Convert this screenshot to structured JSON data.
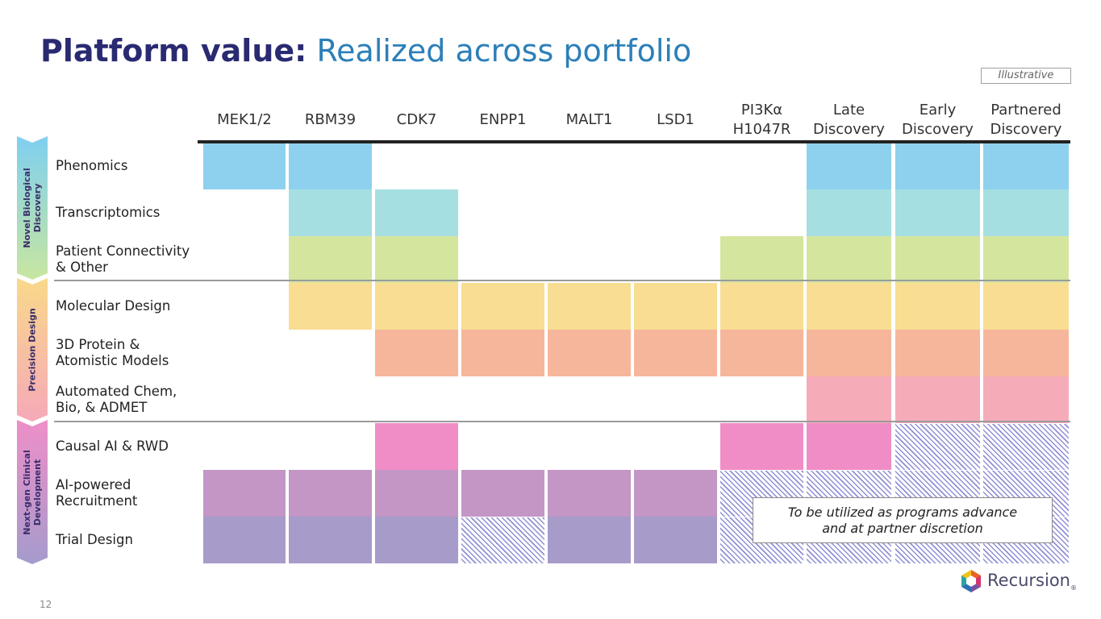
{
  "title": {
    "bold": "Platform value:",
    "light": "Realized across portfolio"
  },
  "badge": "Illustrative",
  "columns": [
    {
      "line1": "MEK1/2",
      "line2": ""
    },
    {
      "line1": "RBM39",
      "line2": ""
    },
    {
      "line1": "CDK7",
      "line2": ""
    },
    {
      "line1": "ENPP1",
      "line2": ""
    },
    {
      "line1": "MALT1",
      "line2": ""
    },
    {
      "line1": "LSD1",
      "line2": ""
    },
    {
      "line1": "PI3Kα",
      "line2": "H1047R"
    },
    {
      "line1": "Late",
      "line2": "Discovery"
    },
    {
      "line1": "Early",
      "line2": "Discovery"
    },
    {
      "line1": "Partnered",
      "line2": "Discovery"
    }
  ],
  "segments": [
    {
      "line1": "Novel Biological",
      "line2": "Discovery",
      "color_top": "#7fcff0",
      "color_bottom": "#c8e6a0"
    },
    {
      "line1": "Precision Design",
      "line2": "",
      "color_top": "#f8d98a",
      "color_bottom": "#f6a9b8"
    },
    {
      "line1": "Next-gen Clinical",
      "line2": "Development",
      "color_top": "#ee8fc8",
      "color_bottom": "#a59bcc"
    }
  ],
  "rows": [
    {
      "line1": "Phenomics",
      "line2": "",
      "color": "#8dd1ee"
    },
    {
      "line1": "Transcriptomics",
      "line2": "",
      "color": "#a6dfe2"
    },
    {
      "line1": "Patient Connectivity",
      "line2": "& Other",
      "color": "#d4e59e"
    },
    {
      "line1": "Molecular Design",
      "line2": "",
      "color": "#f8dd92"
    },
    {
      "line1": "3D Protein &",
      "line2": "Atomistic Models",
      "color": "#f6b69b"
    },
    {
      "line1": "Automated Chem,",
      "line2": "Bio, & ADMET",
      "color": "#f6abb9"
    },
    {
      "line1": "Causal AI & RWD",
      "line2": "",
      "color": "#f08dc6"
    },
    {
      "line1": "AI-powered",
      "line2": "Recruitment",
      "color": "#c396c6"
    },
    {
      "line1": "Trial Design",
      "line2": "",
      "color": "#a79bca"
    }
  ],
  "matrix": [
    [
      1,
      1,
      0,
      0,
      0,
      0,
      0,
      1,
      1,
      1
    ],
    [
      0,
      1,
      1,
      0,
      0,
      0,
      0,
      1,
      1,
      1
    ],
    [
      0,
      1,
      1,
      0,
      0,
      0,
      1,
      1,
      1,
      1
    ],
    [
      0,
      1,
      1,
      1,
      1,
      1,
      1,
      1,
      1,
      1
    ],
    [
      0,
      0,
      1,
      1,
      1,
      1,
      1,
      1,
      1,
      1
    ],
    [
      0,
      0,
      0,
      0,
      0,
      0,
      0,
      1,
      1,
      1
    ],
    [
      0,
      0,
      1,
      0,
      0,
      0,
      1,
      1,
      2,
      2
    ],
    [
      1,
      1,
      1,
      1,
      1,
      1,
      2,
      2,
      2,
      2
    ],
    [
      1,
      1,
      1,
      2,
      1,
      1,
      2,
      2,
      2,
      2
    ]
  ],
  "note": {
    "line1": "To be utilized as programs advance",
    "line2": "and at partner discretion"
  },
  "page_number": "12",
  "logo": {
    "text": "Recursion",
    "reg": "®"
  }
}
